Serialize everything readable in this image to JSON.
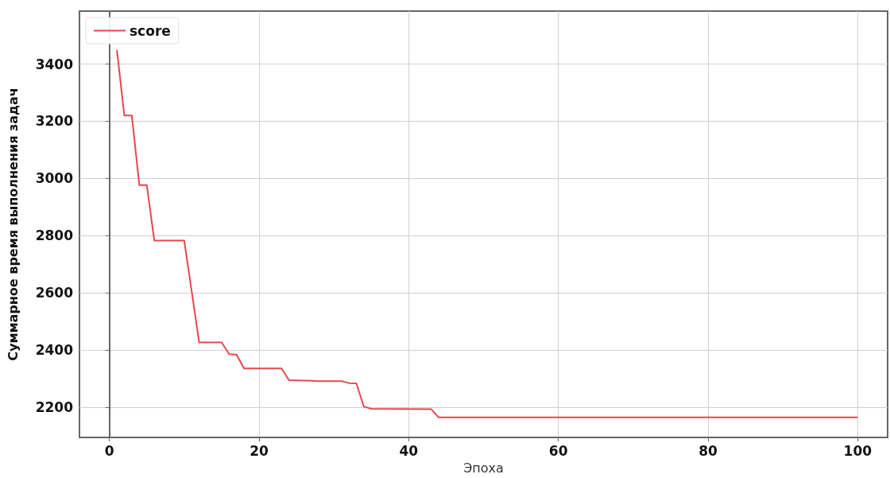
{
  "chart_data": {
    "type": "line",
    "xlabel": "Эпоха",
    "ylabel": "Суммарное время выполнения задач",
    "xlim": [
      -4,
      104
    ],
    "ylim": [
      2095,
      3585
    ],
    "xticks": [
      0,
      20,
      40,
      60,
      80,
      100
    ],
    "yticks": [
      2200,
      2400,
      2600,
      2800,
      3000,
      3200,
      3400
    ],
    "grid": true,
    "legend": "top left",
    "marker": "none",
    "line_style": "solid",
    "series": [
      {
        "name": "score",
        "color": "#e8474f",
        "x": [
          1,
          2,
          3,
          4,
          5,
          6,
          10,
          12,
          15,
          16,
          17,
          18,
          23,
          24,
          27,
          28,
          31,
          32,
          33,
          34,
          35,
          43,
          44,
          100
        ],
        "values": [
          3450,
          3220,
          3220,
          2977,
          2977,
          2783,
          2783,
          2427,
          2427,
          2386,
          2384,
          2336,
          2336,
          2295,
          2293,
          2292,
          2292,
          2285,
          2284,
          2203,
          2195,
          2194,
          2165,
          2165
        ]
      }
    ]
  }
}
